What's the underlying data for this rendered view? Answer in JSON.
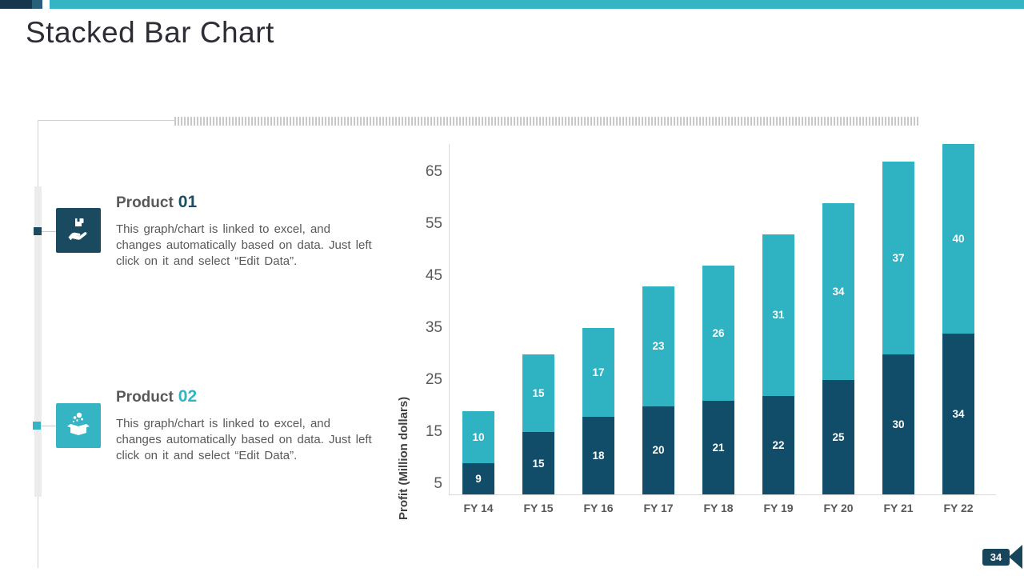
{
  "header": {
    "title": "Stacked Bar Chart"
  },
  "theme": {
    "dark_navy": "#16364d",
    "medium_navy": "#28607b",
    "teal": "#35b4c3",
    "bar_dark": "#114d69",
    "bar_teal": "#2fb3c3",
    "icon_dark": "#1a4a60",
    "text_gray": "#595959"
  },
  "products": [
    {
      "label": "Product",
      "number": "01",
      "number_color": "#1d4f63",
      "icon": "hand-holding-box-icon",
      "icon_bg": "#1a4a60",
      "description": "This graph/chart is linked to excel, and changes automatically based on data. Just left click on it and select “Edit Data”."
    },
    {
      "label": "Product",
      "number": "02",
      "number_color": "#35b4c3",
      "icon": "open-box-icon",
      "icon_bg": "#35b4c3",
      "description": "This graph/chart is linked to excel, and changes automatically based on data. Just left click on it and select “Edit Data”."
    }
  ],
  "chart_data": {
    "type": "bar",
    "stacked": true,
    "title": "",
    "xlabel": "",
    "ylabel": "Profit  (Million dollars)",
    "categories": [
      "FY 14",
      "FY 15",
      "FY 16",
      "FY 17",
      "FY 18",
      "FY 19",
      "FY 20",
      "FY 21",
      "FY 22"
    ],
    "series": [
      {
        "name": "Product 01",
        "color": "#114d69",
        "values": [
          9,
          15,
          18,
          20,
          21,
          22,
          25,
          30,
          34
        ]
      },
      {
        "name": "Product 02",
        "color": "#2fb3c3",
        "values": [
          10,
          15,
          17,
          23,
          26,
          31,
          34,
          37,
          40
        ]
      }
    ],
    "totals": [
      19,
      30,
      35,
      43,
      47,
      53,
      59,
      67,
      74
    ],
    "yticks": [
      5,
      15,
      25,
      35,
      45,
      55,
      65
    ],
    "ylim": [
      3,
      70.4
    ],
    "grid": false,
    "legend": false,
    "value_labels": true,
    "note": "bars clipped below axis minimum and above axis maximum"
  },
  "footer": {
    "page_number": "34"
  }
}
